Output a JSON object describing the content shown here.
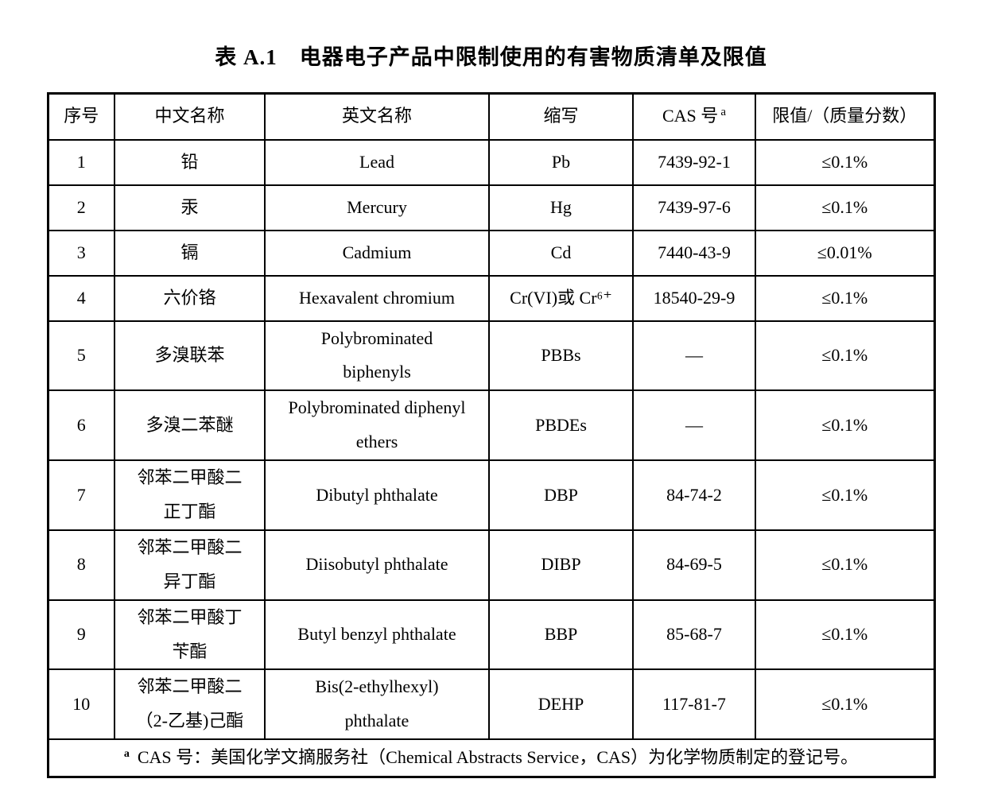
{
  "page": {
    "title": "表 A.1　电器电子产品中限制使用的有害物质清单及限值"
  },
  "table": {
    "headers": [
      "序号",
      "中文名称",
      "英文名称",
      "缩写",
      "CAS 号",
      "限值/（质量分数）"
    ],
    "cas_header_superscript": "a",
    "rows": [
      {
        "no": "1",
        "cn": "铅",
        "en": "Lead",
        "abbr": "Pb",
        "cas": "7439-92-1",
        "limit": "≤0.1%"
      },
      {
        "no": "2",
        "cn": "汞",
        "en": "Mercury",
        "abbr": "Hg",
        "cas": "7439-97-6",
        "limit": "≤0.1%"
      },
      {
        "no": "3",
        "cn": "镉",
        "en": "Cadmium",
        "abbr": "Cd",
        "cas": "7440-43-9",
        "limit": "≤0.01%"
      },
      {
        "no": "4",
        "cn": "六价铬",
        "en": "Hexavalent chromium",
        "abbr": "Cr(VI)或 Cr⁶⁺",
        "cas": "18540-29-9",
        "limit": "≤0.1%"
      },
      {
        "no": "5",
        "cn": "多溴联苯",
        "en": "Polybrominated\nbiphenyls",
        "abbr": "PBBs",
        "cas": "—",
        "limit": "≤0.1%"
      },
      {
        "no": "6",
        "cn": "多溴二苯醚",
        "en": "Polybrominated diphenyl\nethers",
        "abbr": "PBDEs",
        "cas": "—",
        "limit": "≤0.1%"
      },
      {
        "no": "7",
        "cn": "邻苯二甲酸二\n正丁酯",
        "en": "Dibutyl phthalate",
        "abbr": "DBP",
        "cas": "84-74-2",
        "limit": "≤0.1%"
      },
      {
        "no": "8",
        "cn": "邻苯二甲酸二\n异丁酯",
        "en": "Diisobutyl phthalate",
        "abbr": "DIBP",
        "cas": "84-69-5",
        "limit": "≤0.1%"
      },
      {
        "no": "9",
        "cn": "邻苯二甲酸丁\n苄酯",
        "en": "Butyl benzyl phthalate",
        "abbr": "BBP",
        "cas": "85-68-7",
        "limit": "≤0.1%"
      },
      {
        "no": "10",
        "cn": "邻苯二甲酸二\n（2-乙基)己酯",
        "en": "Bis(2-ethylhexyl)\nphthalate",
        "abbr": "DEHP",
        "cas": "117-81-7",
        "limit": "≤0.1%"
      }
    ],
    "footnote": {
      "marker": "a",
      "text": "CAS 号：美国化学文摘服务社（Chemical Abstracts Service，CAS）为化学物质制定的登记号。"
    }
  }
}
